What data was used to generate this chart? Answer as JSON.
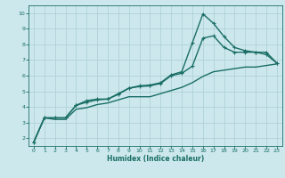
{
  "title": "",
  "xlabel": "Humidex (Indice chaleur)",
  "bg_color": "#cce8ec",
  "grid_color": "#aacdd4",
  "line_color": "#1a6e66",
  "axis_color": "#1a6e66",
  "xlim": [
    -0.5,
    23.5
  ],
  "ylim": [
    1.5,
    10.5
  ],
  "xticks": [
    0,
    1,
    2,
    3,
    4,
    5,
    6,
    7,
    8,
    9,
    10,
    11,
    12,
    13,
    14,
    15,
    16,
    17,
    18,
    19,
    20,
    21,
    22,
    23
  ],
  "yticks": [
    2,
    3,
    4,
    5,
    6,
    7,
    8,
    9,
    10
  ],
  "line1_x": [
    0,
    1,
    2,
    3,
    4,
    5,
    6,
    7,
    8,
    9,
    10,
    11,
    12,
    13,
    14,
    15,
    16,
    17,
    18,
    19,
    20,
    21,
    22,
    23
  ],
  "line1_y": [
    1.75,
    3.3,
    3.3,
    3.3,
    4.1,
    4.3,
    4.45,
    4.5,
    4.8,
    5.2,
    5.3,
    5.35,
    5.5,
    6.0,
    6.15,
    6.6,
    8.4,
    8.55,
    7.8,
    7.5,
    7.5,
    7.5,
    7.35,
    6.8
  ],
  "line2_x": [
    0,
    1,
    2,
    3,
    4,
    5,
    6,
    7,
    8,
    9,
    10,
    11,
    12,
    13,
    14,
    15,
    16,
    17,
    18,
    19,
    20,
    21,
    22,
    23
  ],
  "line2_y": [
    1.75,
    3.3,
    3.3,
    3.3,
    4.1,
    4.4,
    4.5,
    4.5,
    4.85,
    5.2,
    5.35,
    5.4,
    5.55,
    6.05,
    6.25,
    8.1,
    9.95,
    9.35,
    8.5,
    7.8,
    7.6,
    7.5,
    7.5,
    6.8
  ],
  "line3_x": [
    0,
    1,
    2,
    3,
    4,
    5,
    6,
    7,
    8,
    9,
    10,
    11,
    12,
    13,
    14,
    15,
    16,
    17,
    18,
    19,
    20,
    21,
    22,
    23
  ],
  "line3_y": [
    1.75,
    3.3,
    3.2,
    3.2,
    3.85,
    3.95,
    4.15,
    4.25,
    4.45,
    4.65,
    4.65,
    4.65,
    4.85,
    5.05,
    5.25,
    5.55,
    5.95,
    6.25,
    6.35,
    6.45,
    6.55,
    6.55,
    6.65,
    6.75
  ],
  "linewidth": 1.0,
  "markersize": 3.5
}
